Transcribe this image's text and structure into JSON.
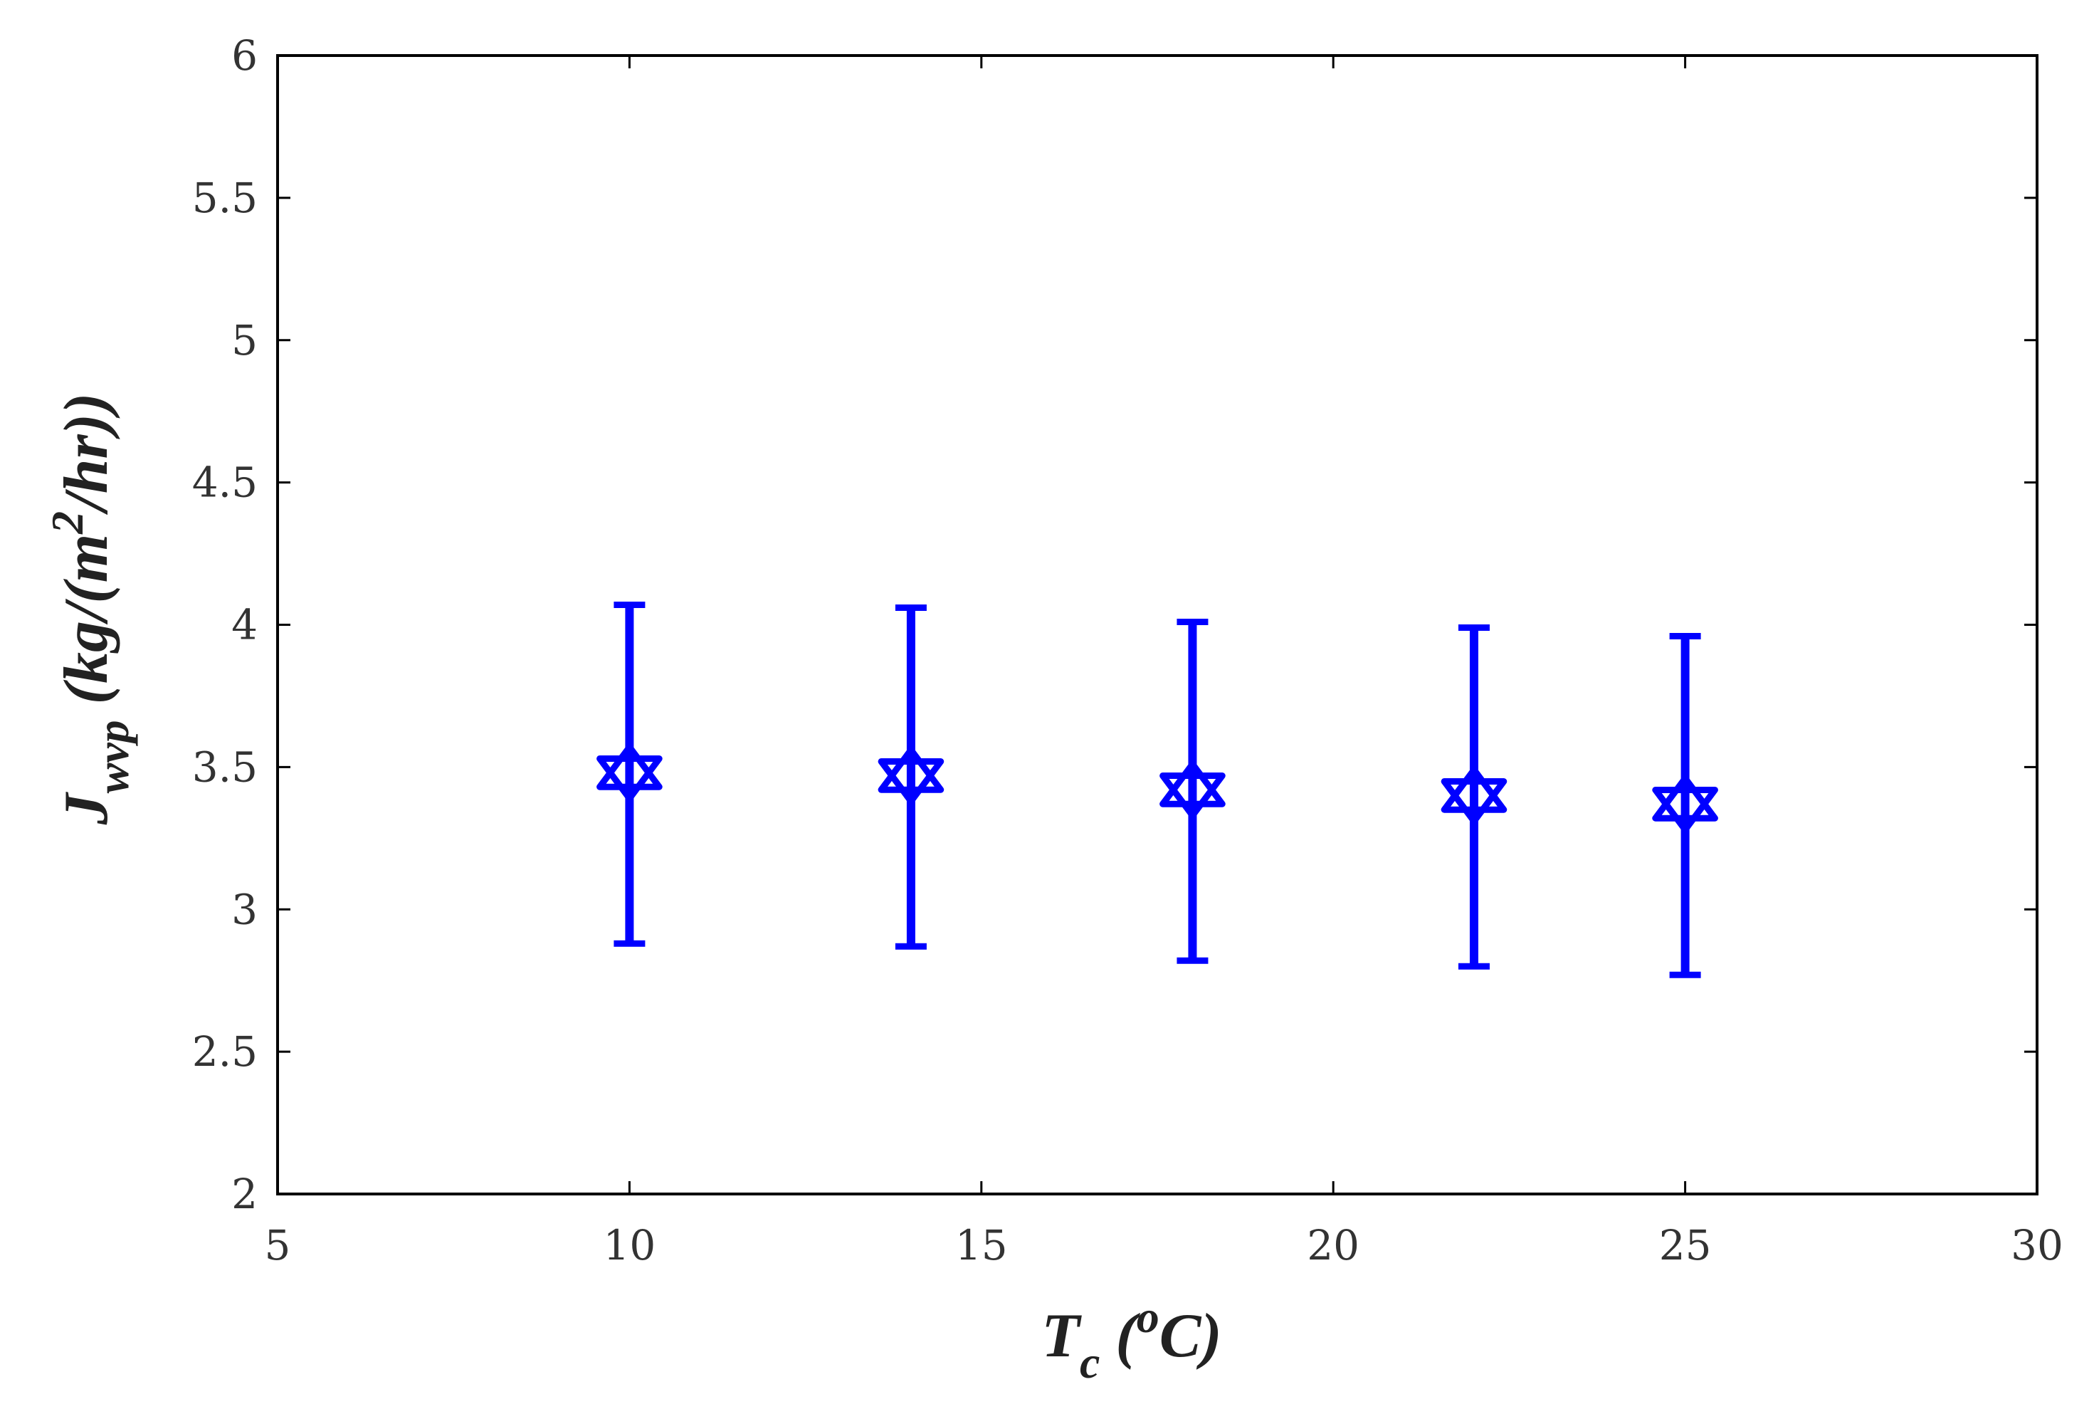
{
  "chart_data": {
    "type": "scatter",
    "title": "",
    "xlabel": {
      "main": "T",
      "sub": "c",
      "open": " (",
      "sup": "o",
      "unit": "C)"
    },
    "ylabel": {
      "main": "J",
      "sub": "wvp",
      "unit_open": " (kg/(m",
      "sup": "2",
      "unit_close": "/hr))"
    },
    "xlim": [
      5,
      30
    ],
    "ylim": [
      2,
      6
    ],
    "xticks": [
      5,
      10,
      15,
      20,
      25,
      30
    ],
    "yticks": [
      2,
      2.5,
      3,
      3.5,
      4,
      4.5,
      5,
      5.5,
      6
    ],
    "xtick_labels": [
      "5",
      "10",
      "15",
      "20",
      "25",
      "30"
    ],
    "ytick_labels": [
      "2",
      "2.5",
      "3",
      "3.5",
      "4",
      "4.5",
      "5",
      "5.5",
      "6"
    ],
    "grid": false,
    "legend": "none",
    "marker": "hexagram",
    "color": "#0000ff",
    "points": [
      {
        "x": 10,
        "y": 3.48,
        "err_low": 2.88,
        "err_high": 4.07
      },
      {
        "x": 14,
        "y": 3.47,
        "err_low": 2.87,
        "err_high": 4.06
      },
      {
        "x": 18,
        "y": 3.42,
        "err_low": 2.82,
        "err_high": 4.01
      },
      {
        "x": 22,
        "y": 3.4,
        "err_low": 2.8,
        "err_high": 3.99
      },
      {
        "x": 25,
        "y": 3.37,
        "err_low": 2.77,
        "err_high": 3.96
      }
    ]
  }
}
